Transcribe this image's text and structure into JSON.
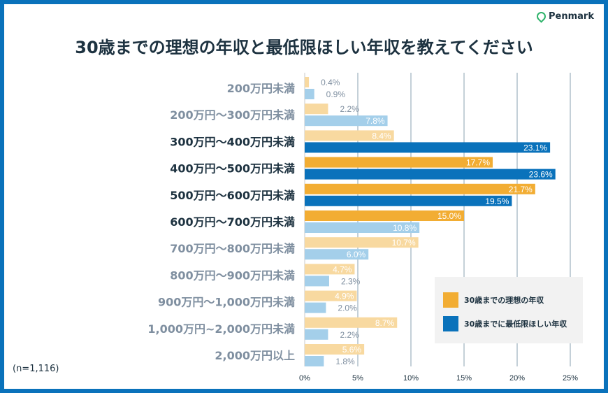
{
  "brand": "Penmark",
  "title": "30歳までの理想の年収と最低限ほしい年収を教えてください",
  "note": "(n=1,116)",
  "colors": {
    "ideal": "#f2ad33",
    "ideal_light": "#f8d9a0",
    "min": "#0a72bb",
    "min_light": "#a4cfea",
    "label_dark": "#1d3240",
    "label_grey": "#7f8fa0"
  },
  "chart_data": {
    "type": "bar",
    "orientation": "horizontal",
    "categories": [
      "200万円未満",
      "200万円〜300万円未満",
      "300万円〜400万円未満",
      "400万円〜500万円未満",
      "500万円〜600万円未満",
      "600万円〜700万円未満",
      "700万円〜800万円未満",
      "800万円〜900万円未満",
      "900万円〜1,000万円未満",
      "1,000万円~2,000万円未満",
      "2,000万円以上"
    ],
    "highlighted_categories": [
      2,
      3,
      4,
      5
    ],
    "series": [
      {
        "name": "30歳までの理想の年収",
        "values": [
          0.4,
          2.2,
          8.4,
          17.7,
          21.7,
          15.0,
          10.7,
          4.7,
          4.9,
          8.7,
          5.6
        ],
        "highlighted": [
          3,
          4,
          5
        ]
      },
      {
        "name": "30歳までに最低限ほしい年収",
        "values": [
          0.9,
          7.8,
          23.1,
          23.6,
          19.5,
          10.8,
          6.0,
          2.3,
          2.0,
          2.2,
          1.8
        ],
        "highlighted": [
          2,
          3,
          4
        ]
      }
    ],
    "xlim": [
      0,
      25
    ],
    "xticks": [
      "0%",
      "5%",
      "10%",
      "15%",
      "20%",
      "25%"
    ],
    "grid": true,
    "legend": "bottom-right",
    "data_labels": true
  }
}
